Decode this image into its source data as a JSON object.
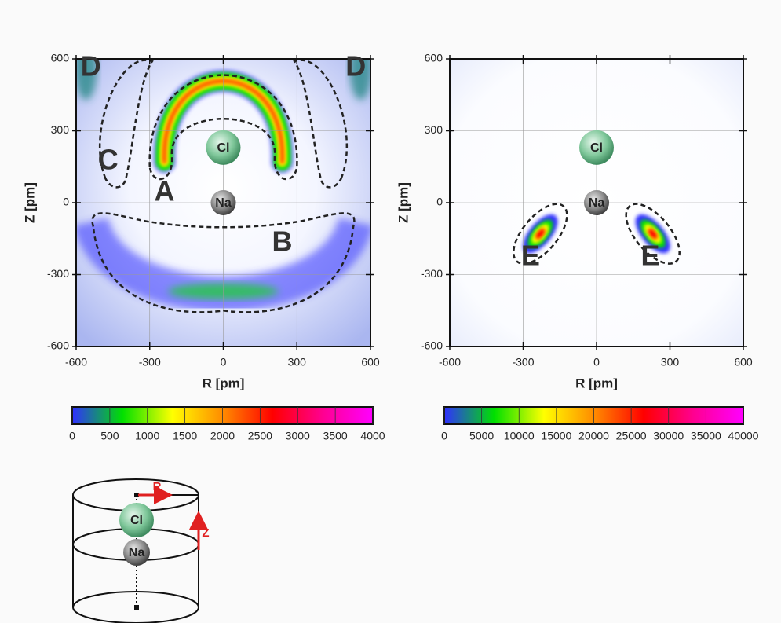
{
  "chart_data": [
    {
      "type": "heatmap",
      "xlabel": "R [pm]",
      "ylabel": "Z [pm]",
      "xlim": [
        -600,
        600
      ],
      "ylim": [
        -600,
        600
      ],
      "xticks": [
        -600,
        -300,
        0,
        300,
        600
      ],
      "yticks": [
        -600,
        -300,
        0,
        300,
        600
      ],
      "grid": true,
      "colorbar": {
        "lim": [
          0,
          4000
        ],
        "ticks": [
          0,
          500,
          1000,
          1500,
          2000,
          2500,
          3000,
          3500,
          4000
        ]
      },
      "colormap": [
        "#3030ff",
        "#00e000",
        "#ffff00",
        "#ff8c00",
        "#ff0000",
        "#ff0090",
        "#ff00ff"
      ],
      "region_labels": [
        "D",
        "D",
        "C",
        "A",
        "B"
      ],
      "atoms": [
        "Cl",
        "Na"
      ]
    },
    {
      "type": "heatmap",
      "xlabel": "R [pm]",
      "ylabel": "Z [pm]",
      "xlim": [
        -600,
        600
      ],
      "ylim": [
        -600,
        600
      ],
      "xticks": [
        -600,
        -300,
        0,
        300,
        600
      ],
      "yticks": [
        -600,
        -300,
        0,
        300,
        600
      ],
      "grid": true,
      "colorbar": {
        "lim": [
          0,
          40000
        ],
        "ticks": [
          0,
          5000,
          10000,
          15000,
          20000,
          25000,
          30000,
          35000,
          40000
        ]
      },
      "colormap": [
        "#3030ff",
        "#00e000",
        "#ffff00",
        "#ff8c00",
        "#ff0000",
        "#ff0090",
        "#ff00ff"
      ],
      "region_labels": [
        "E",
        "E"
      ],
      "atoms": [
        "Cl",
        "Na"
      ]
    }
  ],
  "diagram": {
    "radial": "R",
    "axial": "Z",
    "atoms": [
      "Cl",
      "Na"
    ]
  }
}
